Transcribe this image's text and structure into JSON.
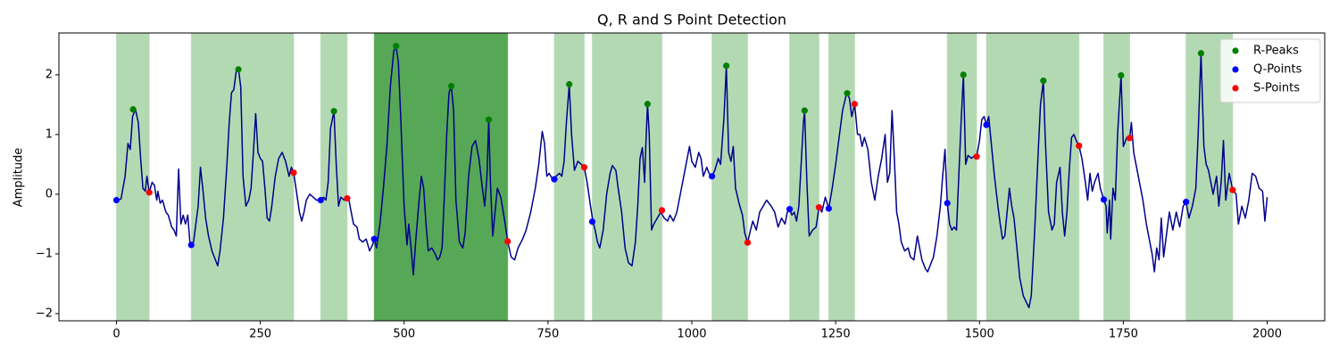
{
  "chart_data": {
    "type": "line",
    "title": "Q, R and S Point Detection",
    "y_label": "Amplitude",
    "xlim": [
      -100,
      2100
    ],
    "ylim": [
      -2.12,
      2.7
    ],
    "xticks": [
      0,
      250,
      500,
      750,
      1000,
      1250,
      1500,
      1750,
      2000
    ],
    "yticks": [
      {
        "value": -2,
        "label": "−2"
      },
      {
        "value": -1,
        "label": "−1"
      },
      0,
      1,
      2
    ],
    "legend": "upper right",
    "spans": [
      {
        "x": [
          0,
          57
        ],
        "color": "#b3d9b3"
      },
      {
        "x": [
          130,
          308
        ],
        "color": "#b3d9b3"
      },
      {
        "x": [
          355,
          401
        ],
        "color": "#b3d9b3"
      },
      {
        "x": [
          448,
          680
        ],
        "color": "#56a856"
      },
      {
        "x": [
          761,
          813
        ],
        "color": "#b3d9b3"
      },
      {
        "x": [
          827,
          948
        ],
        "color": "#b3d9b3"
      },
      {
        "x": [
          1035,
          1097
        ],
        "color": "#b3d9b3"
      },
      {
        "x": [
          1170,
          1221
        ],
        "color": "#b3d9b3"
      },
      {
        "x": [
          1238,
          1283
        ],
        "color": "#b3d9b3"
      },
      {
        "x": [
          1444,
          1495
        ],
        "color": "#b3d9b3"
      },
      {
        "x": [
          1512,
          1673
        ],
        "color": "#b3d9b3"
      },
      {
        "x": [
          1716,
          1761
        ],
        "color": "#b3d9b3"
      },
      {
        "x": [
          1859,
          1940
        ],
        "color": "#b3d9b3"
      }
    ],
    "series": [
      {
        "type": "line",
        "color": "#00008b",
        "x": [
          0,
          8,
          15,
          20,
          24,
          28,
          33,
          38,
          42,
          46,
          50,
          53,
          57,
          62,
          66,
          70,
          72,
          76,
          80,
          86,
          90,
          96,
          100,
          104,
          108,
          112,
          116,
          120,
          124,
          128,
          134,
          138,
          142,
          146,
          150,
          155,
          160,
          166,
          172,
          176,
          180,
          186,
          192,
          196,
          200,
          204,
          208,
          212,
          216,
          220,
          225,
          230,
          234,
          238,
          242,
          246,
          250,
          254,
          258,
          262,
          266,
          270,
          276,
          282,
          288,
          294,
          300,
          304,
          308,
          312,
          318,
          322,
          326,
          330,
          336,
          342,
          348,
          355,
          360,
          364,
          368,
          372,
          378,
          382,
          386,
          390,
          396,
          401,
          404,
          408,
          412,
          418,
          422,
          428,
          434,
          440,
          445,
          448,
          452,
          458,
          464,
          470,
          476,
          482,
          486,
          490,
          494,
          500,
          505,
          508,
          512,
          516,
          520,
          526,
          530,
          534,
          538,
          542,
          548,
          554,
          558,
          562,
          566,
          570,
          574,
          578,
          582,
          586,
          590,
          596,
          602,
          606,
          612,
          618,
          624,
          630,
          636,
          640,
          644,
          647,
          650,
          654,
          658,
          662,
          668,
          674,
          680,
          686,
          692,
          698,
          706,
          712,
          720,
          728,
          734,
          740,
          744,
          748,
          752,
          758,
          764,
          770,
          774,
          778,
          782,
          787,
          791,
          796,
          802,
          808,
          813,
          818,
          824,
          828,
          832,
          836,
          840,
          846,
          852,
          858,
          862,
          868,
          872,
          878,
          884,
          890,
          896,
          902,
          906,
          910,
          914,
          918,
          920,
          923,
          926,
          930,
          934,
          940,
          946,
          952,
          958,
          962,
          968,
          974,
          978,
          984,
          990,
          996,
          1000,
          1006,
          1012,
          1016,
          1020,
          1026,
          1030,
          1035,
          1040,
          1046,
          1050,
          1056,
          1060,
          1064,
          1068,
          1072,
          1076,
          1082,
          1088,
          1092,
          1097,
          1102,
          1106,
          1112,
          1118,
          1124,
          1130,
          1138,
          1144,
          1150,
          1156,
          1162,
          1166,
          1170,
          1174,
          1178,
          1182,
          1186,
          1190,
          1194,
          1196,
          1200,
          1204,
          1210,
          1216,
          1221,
          1226,
          1232,
          1238,
          1244,
          1250,
          1256,
          1262,
          1268,
          1270,
          1274,
          1278,
          1283,
          1288,
          1292,
          1296,
          1300,
          1306,
          1312,
          1318,
          1324,
          1330,
          1336,
          1340,
          1344,
          1348,
          1352,
          1356,
          1360,
          1364,
          1370,
          1376,
          1380,
          1386,
          1392,
          1396,
          1400,
          1406,
          1410,
          1414,
          1420,
          1426,
          1432,
          1436,
          1440,
          1444,
          1448,
          1452,
          1456,
          1460,
          1464,
          1468,
          1472,
          1476,
          1480,
          1486,
          1492,
          1495,
          1500,
          1504,
          1508,
          1512,
          1516,
          1520,
          1526,
          1532,
          1536,
          1540,
          1544,
          1548,
          1552,
          1556,
          1560,
          1566,
          1570,
          1576,
          1582,
          1586,
          1590,
          1596,
          1602,
          1606,
          1611,
          1614,
          1620,
          1626,
          1630,
          1634,
          1640,
          1644,
          1648,
          1652,
          1656,
          1660,
          1664,
          1668,
          1673,
          1678,
          1684,
          1688,
          1692,
          1696,
          1700,
          1706,
          1710,
          1716,
          1720,
          1722,
          1726,
          1728,
          1732,
          1736,
          1740,
          1746,
          1750,
          1756,
          1761,
          1764,
          1768,
          1772,
          1778,
          1784,
          1790,
          1796,
          1800,
          1804,
          1808,
          1812,
          1816,
          1820,
          1826,
          1830,
          1836,
          1842,
          1848,
          1854,
          1859,
          1864,
          1870,
          1876,
          1880,
          1885,
          1890,
          1894,
          1898,
          1902,
          1906,
          1912,
          1916,
          1920,
          1924,
          1928,
          1934,
          1940,
          1946,
          1950,
          1956,
          1962,
          1968,
          1974,
          1980,
          1986,
          1992,
          1996,
          2000
        ],
        "values": [
          -0.1,
          -0.08,
          0.3,
          0.85,
          0.75,
          1.3,
          1.42,
          1.2,
          0.6,
          0.1,
          0.05,
          0.3,
          0.03,
          0.2,
          0.15,
          -0.1,
          0.05,
          -0.15,
          -0.1,
          -0.3,
          -0.35,
          -0.55,
          -0.6,
          -0.7,
          0.42,
          -0.5,
          -0.35,
          -0.5,
          -0.35,
          -0.85,
          -0.8,
          -0.5,
          -0.2,
          0.45,
          0.1,
          -0.4,
          -0.7,
          -0.95,
          -1.1,
          -1.2,
          -0.95,
          -0.4,
          0.5,
          1.2,
          1.7,
          1.75,
          2.05,
          2.1,
          1.8,
          0.3,
          -0.2,
          -0.1,
          0.1,
          0.7,
          1.35,
          0.7,
          0.6,
          0.55,
          0.1,
          -0.4,
          -0.45,
          -0.2,
          0.3,
          0.6,
          0.7,
          0.55,
          0.3,
          0.45,
          0.36,
          0.1,
          -0.3,
          -0.45,
          -0.3,
          -0.1,
          0,
          -0.05,
          -0.1,
          -0.1,
          -0.05,
          -0.1,
          0.2,
          1.1,
          1.39,
          0.5,
          -0.2,
          -0.05,
          -0.1,
          -0.07,
          -0.1,
          -0.3,
          -0.5,
          -0.55,
          -0.75,
          -0.8,
          -0.75,
          -0.95,
          -0.85,
          -0.75,
          -0.9,
          -0.5,
          0.1,
          0.8,
          1.8,
          2.4,
          2.48,
          2.2,
          1.3,
          -0.2,
          -0.85,
          -0.5,
          -0.9,
          -1.35,
          -0.8,
          -0.1,
          0.3,
          0.1,
          -0.5,
          -0.95,
          -0.9,
          -1.0,
          -1.1,
          -1.05,
          -0.9,
          0,
          1.0,
          1.7,
          1.81,
          1.4,
          -0.1,
          -0.8,
          -0.9,
          -0.65,
          0.3,
          0.8,
          0.9,
          0.6,
          0.1,
          -0.2,
          0.3,
          1.25,
          0.2,
          -0.7,
          -0.3,
          0.1,
          -0.05,
          -0.4,
          -0.79,
          -1.05,
          -1.1,
          -0.9,
          -0.75,
          -0.6,
          -0.3,
          0.1,
          0.5,
          1.05,
          0.85,
          0.3,
          0.35,
          0.25,
          0.3,
          0.35,
          0.3,
          0.55,
          1.2,
          1.84,
          1.0,
          0.4,
          0.55,
          0.5,
          0.45,
          0.2,
          -0.2,
          -0.45,
          -0.6,
          -0.8,
          -0.9,
          -0.6,
          0,
          0.35,
          0.48,
          0.4,
          0.1,
          -0.3,
          -0.9,
          -1.15,
          -1.2,
          -0.8,
          -0.2,
          0.6,
          0.78,
          0.2,
          0.8,
          1.51,
          1.0,
          -0.6,
          -0.5,
          -0.4,
          -0.3,
          -0.4,
          -0.45,
          -0.35,
          -0.45,
          -0.3,
          -0.1,
          0.2,
          0.5,
          0.8,
          0.55,
          0.45,
          0.7,
          0.6,
          0.3,
          0.45,
          0.35,
          0.3,
          0.4,
          0.6,
          0.5,
          1.3,
          2.15,
          0.7,
          0.55,
          0.8,
          0.1,
          -0.15,
          -0.35,
          -0.65,
          -0.81,
          -0.6,
          -0.45,
          -0.6,
          -0.3,
          -0.2,
          -0.1,
          -0.2,
          -0.3,
          -0.55,
          -0.4,
          -0.5,
          -0.3,
          -0.25,
          -0.35,
          -0.3,
          -0.45,
          -0.2,
          0.5,
          1.2,
          1.4,
          0.2,
          -0.7,
          -0.6,
          -0.55,
          -0.22,
          -0.3,
          -0.05,
          -0.24,
          0.1,
          0.5,
          0.95,
          1.4,
          1.65,
          1.69,
          1.6,
          1.3,
          1.51,
          1.0,
          1.0,
          0.8,
          0.95,
          0.75,
          0.2,
          -0.1,
          0.3,
          0.6,
          1.0,
          0.2,
          0.35,
          1.4,
          0.6,
          -0.3,
          -0.5,
          -0.8,
          -0.95,
          -0.9,
          -1.05,
          -1.1,
          -0.7,
          -0.9,
          -1.1,
          -1.25,
          -1.3,
          -1.2,
          -1.05,
          -0.7,
          -0.2,
          0.3,
          0.75,
          -0.15,
          -0.5,
          -0.6,
          -0.55,
          -0.6,
          0.3,
          1.2,
          2.0,
          0.5,
          0.65,
          0.6,
          0.65,
          0.63,
          0.9,
          1.25,
          1.3,
          1.16,
          1.3,
          0.9,
          0.3,
          -0.2,
          -0.5,
          -0.75,
          -0.7,
          -0.3,
          0.1,
          -0.2,
          -0.4,
          -1.0,
          -1.4,
          -1.7,
          -1.82,
          -1.9,
          -1.7,
          -0.6,
          0.7,
          1.5,
          1.9,
          1.0,
          -0.3,
          -0.6,
          -0.5,
          0.2,
          0.45,
          -0.3,
          -0.7,
          -0.3,
          0.4,
          0.95,
          1.0,
          0.9,
          0.81,
          0.6,
          0.2,
          -0.1,
          0.35,
          0.05,
          0.2,
          0.35,
          0.1,
          -0.09,
          -0.2,
          -0.65,
          -0.1,
          -0.75,
          0.1,
          -0.1,
          1.0,
          1.99,
          0.8,
          0.95,
          0.94,
          1.2,
          0.7,
          0.5,
          0.2,
          -0.1,
          -0.5,
          -0.8,
          -1.0,
          -1.3,
          -0.9,
          -1.1,
          -0.4,
          -1.05,
          -0.6,
          -0.3,
          -0.6,
          -0.3,
          -0.55,
          -0.2,
          -0.13,
          -0.4,
          -0.2,
          0.1,
          1.0,
          2.36,
          0.8,
          0.5,
          0.4,
          0.2,
          0.0,
          0.3,
          -0.2,
          0.2,
          0.9,
          -0.1,
          0.35,
          0.07,
          0.0,
          -0.5,
          -0.2,
          -0.4,
          -0.1,
          0.35,
          0.3,
          0.1,
          0.05,
          -0.45,
          -0.05
        ]
      },
      {
        "type": "scatter",
        "name": "R-Peaks",
        "color": "#008000",
        "x": [
          29,
          212,
          378,
          486,
          582,
          647,
          787,
          923,
          1060,
          1196,
          1270,
          1472,
          1611,
          1746,
          1885
        ],
        "values": [
          1.42,
          2.09,
          1.39,
          2.48,
          1.81,
          1.25,
          1.84,
          1.51,
          2.15,
          1.4,
          1.69,
          2.0,
          1.9,
          1.99,
          2.36
        ]
      },
      {
        "type": "scatter",
        "name": "Q-Points",
        "color": "#0000ff",
        "x": [
          0,
          130,
          355,
          448,
          761,
          827,
          1035,
          1170,
          1238,
          1444,
          1512,
          1716,
          1859
        ],
        "values": [
          -0.1,
          -0.85,
          -0.1,
          -0.75,
          0.25,
          -0.46,
          0.3,
          -0.25,
          -0.24,
          -0.15,
          1.16,
          -0.09,
          -0.13
        ]
      },
      {
        "type": "scatter",
        "name": "S-Points",
        "color": "#ff0000",
        "x": [
          57,
          308,
          401,
          680,
          813,
          948,
          1097,
          1221,
          1283,
          1495,
          1673,
          1761,
          1940
        ],
        "values": [
          0.03,
          0.36,
          -0.07,
          -0.79,
          0.45,
          -0.27,
          -0.81,
          -0.22,
          1.51,
          0.63,
          0.81,
          0.94,
          0.07
        ]
      }
    ]
  }
}
